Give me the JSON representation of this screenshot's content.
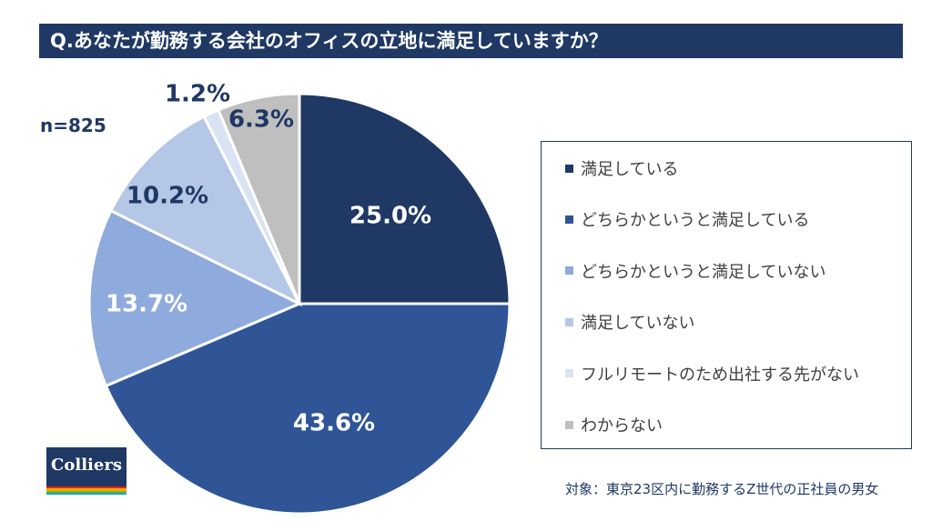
{
  "header": {
    "title": "Q.あなたが勤務する会社のオフィスの立地に満足していますか？"
  },
  "sample_size": "n=825",
  "footnote": "対象：東京23区内に勤務するZ世代の正社員の男女",
  "logo": {
    "text": "Colliers",
    "stripe_colors": [
      "#e2231a",
      "#f7a800",
      "#7ab800",
      "#00a4e4"
    ]
  },
  "colors": {
    "title_bg": "#1f3864",
    "slice_border": "#ffffff",
    "legend_border": "#1f3864"
  },
  "chart_data": {
    "type": "pie",
    "title": "Q.あなたが勤務する会社のオフィスの立地に満足していますか？",
    "start": "12 o'clock",
    "direction": "clockwise",
    "legend_position": "right",
    "slices": [
      {
        "label": "満足している",
        "value": 25.0,
        "display": "25.0%",
        "color": "#1f3864",
        "text_color": "#ffffff"
      },
      {
        "label": "どちらかというと満足している",
        "value": 43.6,
        "display": "43.6%",
        "color": "#2f5597",
        "text_color": "#ffffff"
      },
      {
        "label": "どちらかというと満足していない",
        "value": 13.7,
        "display": "13.7%",
        "color": "#8faadc",
        "text_color": "#ffffff"
      },
      {
        "label": "満足していない",
        "value": 10.2,
        "display": "10.2%",
        "color": "#b4c7e7",
        "text_color": "#1f3864"
      },
      {
        "label": "フルリモートのため出社する先がない",
        "value": 1.2,
        "display": "1.2%",
        "color": "#dae3f3",
        "text_color": "#1f3864"
      },
      {
        "label": "わからない",
        "value": 6.3,
        "display": "6.3%",
        "color": "#bfbfbf",
        "text_color": "#1f3864"
      }
    ]
  }
}
